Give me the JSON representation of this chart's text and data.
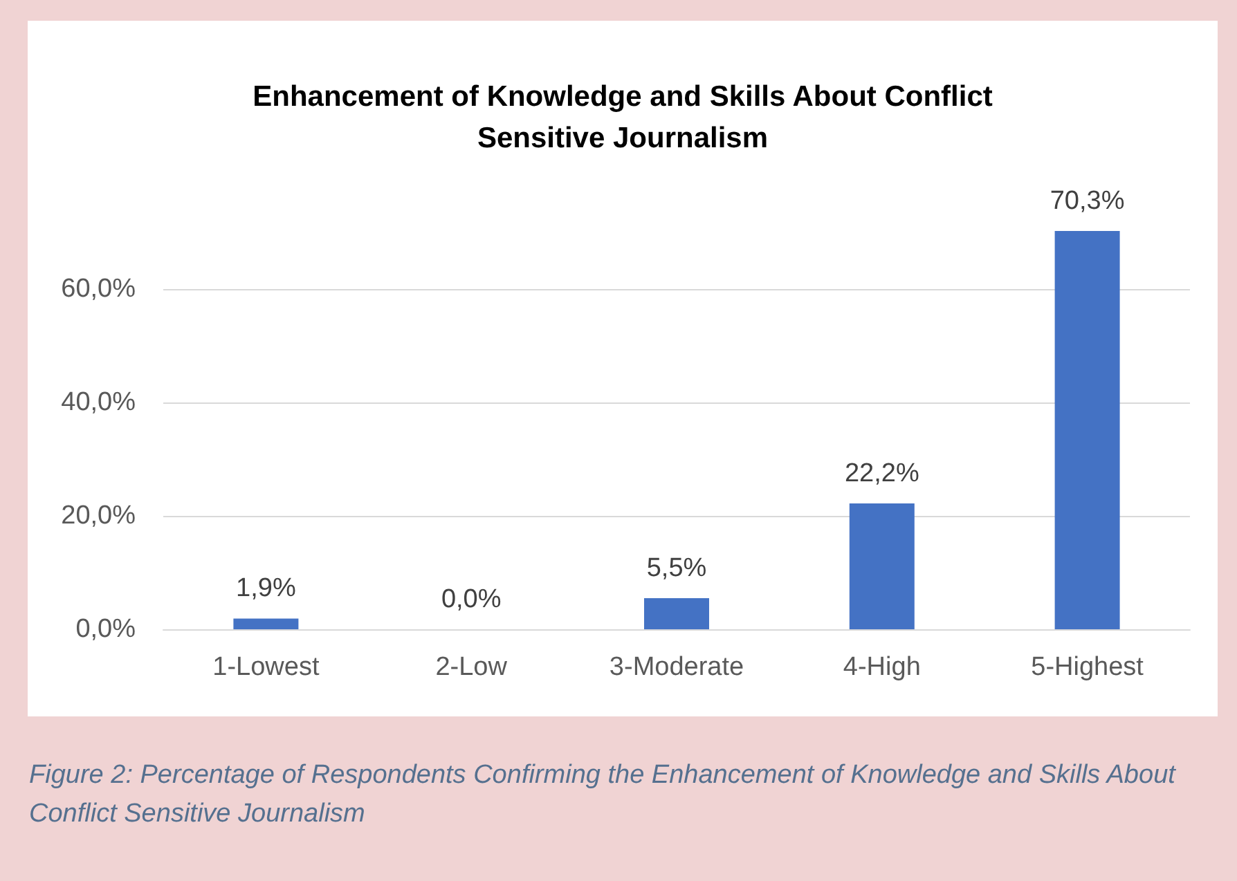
{
  "chart_data": {
    "type": "bar",
    "title": "Enhancement of Knowledge and Skills About Conflict\nSensitive Journalism",
    "categories": [
      "1-Lowest",
      "2-Low",
      "3-Moderate",
      "4-High",
      "5-Highest"
    ],
    "values": [
      1.9,
      0.0,
      5.5,
      22.2,
      70.3
    ],
    "color": "#4472c4",
    "value_labels": [
      "1,9%",
      "0,0%",
      "5,5%",
      "22,2%",
      "70,3%"
    ],
    "ylim": [
      0,
      70.3
    ],
    "yticks": [
      {
        "value": 0,
        "label": "0,0%"
      },
      {
        "value": 20,
        "label": "20,0%"
      },
      {
        "value": 40,
        "label": "40,0%"
      },
      {
        "value": 60,
        "label": "60,0%"
      }
    ],
    "grid": "y",
    "annotations": [
      "Figure 2: Percentage of Respondents Confirming the Enhancement of Knowledge and Skills About Conflict Sensitive Journalism"
    ]
  }
}
